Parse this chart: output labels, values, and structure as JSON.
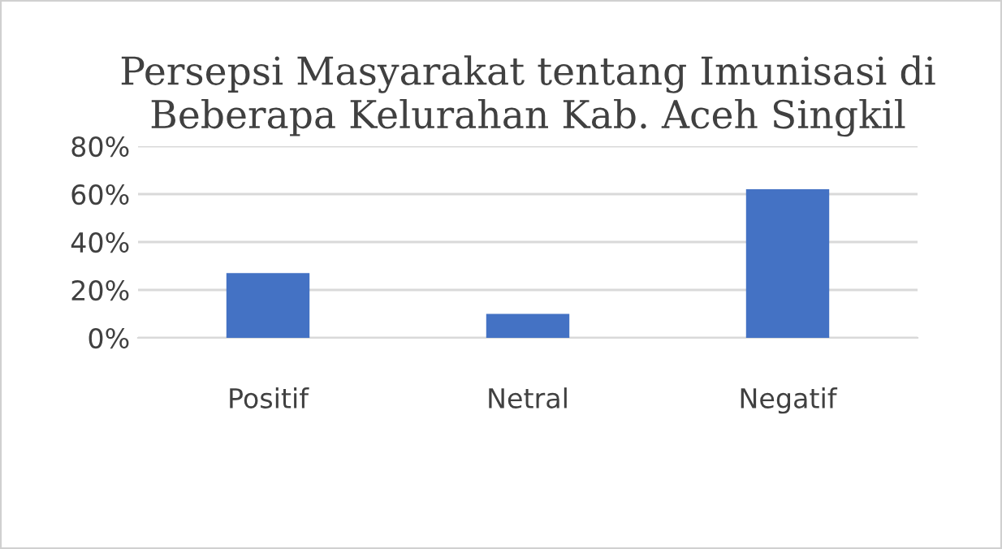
{
  "chart_data": {
    "type": "bar",
    "title": "Persepsi Masyarakat tentang Imunisasi di\nBeberapa Kelurahan Kab. Aceh Singkil",
    "categories": [
      "Positif",
      "Netral",
      "Negatif"
    ],
    "values": [
      27,
      10,
      62
    ],
    "color": "#4472c4",
    "ylim": [
      0,
      80
    ],
    "yticks": [
      {
        "value": 0,
        "label": "0%"
      },
      {
        "value": 20,
        "label": "20%"
      },
      {
        "value": 40,
        "label": "40%"
      },
      {
        "value": 60,
        "label": "60%"
      },
      {
        "value": 80,
        "label": "80%"
      }
    ],
    "grid": "y"
  }
}
